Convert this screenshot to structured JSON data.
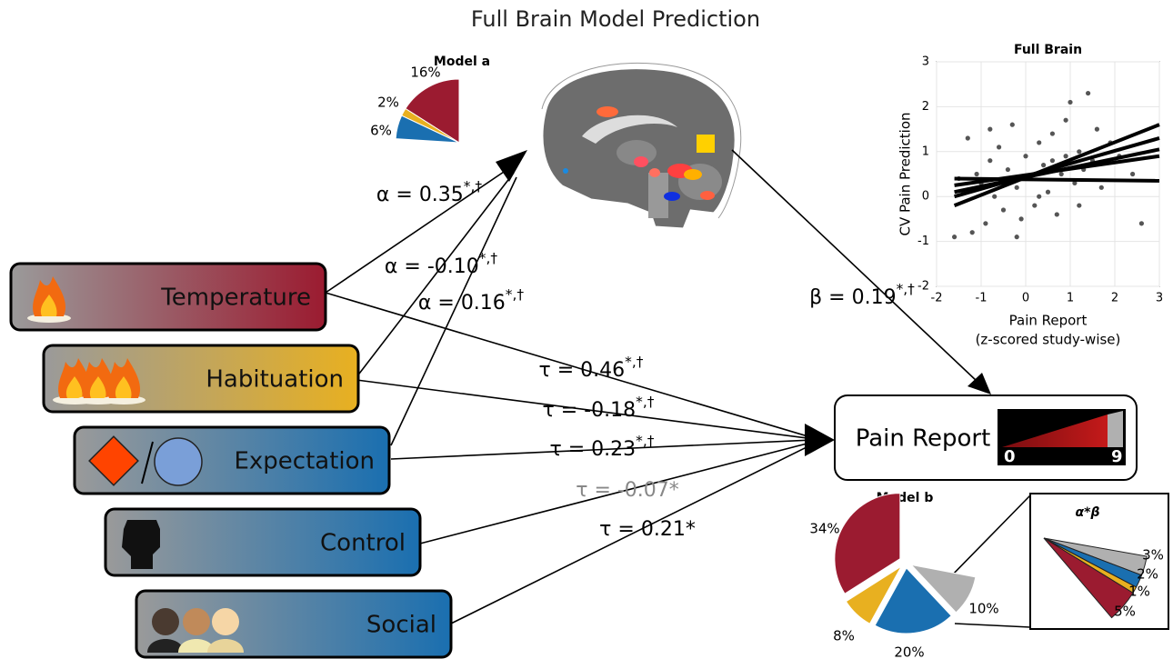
{
  "title": "Full Brain Model Prediction",
  "model_a": {
    "title": "Model a",
    "slices": [
      {
        "value": 16,
        "label": "16%",
        "color": "#9b1b30"
      },
      {
        "value": 2,
        "label": "2%",
        "color": "#e8b020"
      },
      {
        "value": 6,
        "label": "6%",
        "color": "#1a6fb0"
      }
    ]
  },
  "predictors": [
    {
      "label": "Temperature",
      "color": "#9b1b30"
    },
    {
      "label": "Habituation",
      "color": "#e8b020"
    },
    {
      "label": "Expectation",
      "color": "#1a6fb0"
    },
    {
      "label": "Control",
      "color": "#1a6fb0"
    },
    {
      "label": "Social",
      "color": "#1a6fb0"
    }
  ],
  "alpha_paths": [
    {
      "text": "α = 0.35",
      "sup": "*,†"
    },
    {
      "text": "α = -0.10",
      "sup": "*,†"
    },
    {
      "text": "α = 0.16",
      "sup": "*,†"
    }
  ],
  "tau_paths": [
    {
      "text": "τ = 0.46",
      "sup": "*,†"
    },
    {
      "text": "τ = -0.18",
      "sup": "*,†"
    },
    {
      "text": "τ = 0.23",
      "sup": "*,†"
    },
    {
      "text": "τ = -0.07*",
      "color": "#888888"
    },
    {
      "text": "τ = 0.21*"
    }
  ],
  "beta_path": {
    "text": "β = 0.19",
    "sup": "*,†"
  },
  "outcome": {
    "label": "Pain Report",
    "scale_min": 0,
    "scale_max": 9
  },
  "scatter": {
    "type": "scatter",
    "title": "Full Brain",
    "x_label": "Pain Report",
    "x_label_2": "(z-scored study-wise)",
    "y_label": "CV Pain Prediction",
    "xlim": [
      -2,
      3
    ],
    "ylim": [
      -2,
      3
    ],
    "xticks": [
      -2,
      -1,
      0,
      1,
      2,
      3
    ],
    "yticks": [
      -2,
      -1,
      0,
      1,
      2,
      3
    ],
    "grid": true,
    "points": {
      "color": "#555555",
      "x": [
        -1.6,
        -1.4,
        -1.2,
        -1.1,
        -1.0,
        -0.9,
        -0.8,
        -0.7,
        -0.6,
        -0.5,
        -0.4,
        -0.3,
        -0.2,
        -0.1,
        0.0,
        0.1,
        0.2,
        0.3,
        0.4,
        0.5,
        0.6,
        0.7,
        0.8,
        0.9,
        1.0,
        1.1,
        1.2,
        1.3,
        1.4,
        1.5,
        1.7,
        1.9,
        2.1,
        2.4,
        2.6,
        -1.3,
        -0.8,
        -0.2,
        0.3,
        0.9,
        1.2,
        -1.5,
        -0.5,
        0.6,
        1.6
      ],
      "y": [
        -0.9,
        0.1,
        -0.8,
        0.5,
        0.3,
        -0.6,
        0.8,
        0.0,
        1.1,
        -0.3,
        0.6,
        1.6,
        0.2,
        -0.5,
        0.9,
        0.4,
        -0.2,
        1.2,
        0.7,
        0.1,
        1.4,
        -0.4,
        0.5,
        0.9,
        2.1,
        0.3,
        1.0,
        0.6,
        2.3,
        0.8,
        0.2,
        1.2,
        0.9,
        0.5,
        -0.6,
        1.3,
        1.5,
        -0.9,
        0.0,
        1.7,
        -0.2,
        0.4,
        0.3,
        0.8,
        1.5
      ]
    },
    "fits": [
      {
        "x": [
          -1.6,
          3
        ],
        "y": [
          0.4,
          0.35
        ]
      },
      {
        "x": [
          -1.6,
          3
        ],
        "y": [
          0.25,
          0.9
        ]
      },
      {
        "x": [
          -1.6,
          3
        ],
        "y": [
          0.1,
          1.05
        ]
      },
      {
        "x": [
          -1.6,
          3
        ],
        "y": [
          0.0,
          1.3
        ]
      },
      {
        "x": [
          -1.6,
          3
        ],
        "y": [
          -0.2,
          1.6
        ]
      }
    ]
  },
  "model_b": {
    "title": "Model b",
    "slices": [
      {
        "value": 34,
        "label": "34%",
        "color": "#9b1b30"
      },
      {
        "value": 8,
        "label": "8%",
        "color": "#e8b020"
      },
      {
        "value": 20,
        "label": "20%",
        "color": "#1a6fb0"
      },
      {
        "value": 10,
        "label": "10%",
        "color": "#b0b0b0"
      }
    ]
  },
  "inset": {
    "title": "α*β",
    "slices": [
      {
        "value": 3,
        "label": "3%",
        "color": "#b0b0b0"
      },
      {
        "value": 2,
        "label": "2%",
        "color": "#1a6fb0"
      },
      {
        "value": 1,
        "label": "1%",
        "color": "#e8b020"
      },
      {
        "value": 5,
        "label": "5%",
        "color": "#9b1b30"
      }
    ]
  }
}
